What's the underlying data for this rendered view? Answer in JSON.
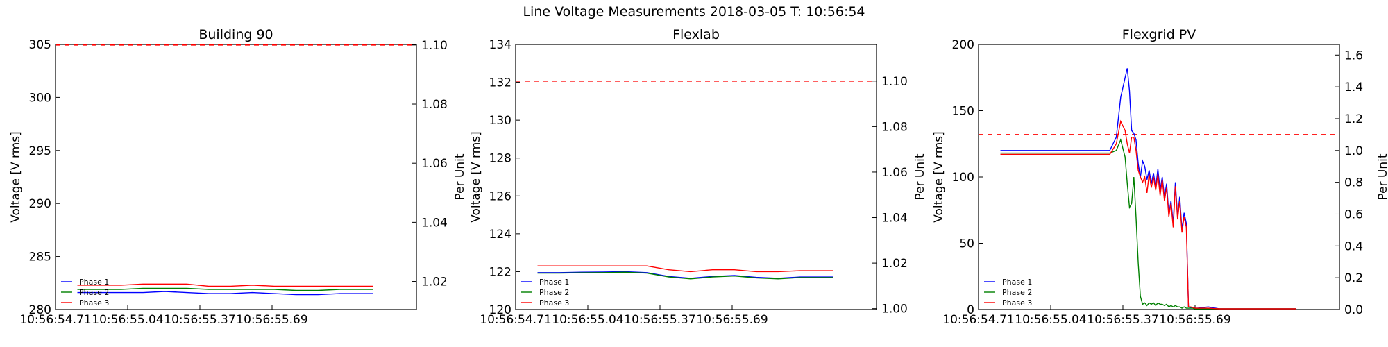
{
  "suptitle": "Line Voltage Measurements 2018-03-05 T: 10:56:54",
  "colors": {
    "phase1": "#0000ff",
    "phase2": "#008000",
    "phase3": "#ff0000",
    "limit": "#ff0000"
  },
  "chart_data": [
    {
      "type": "line",
      "title": "Building 90",
      "ylabel": "Voltage [V rms]",
      "y2label": "Per Unit",
      "ylim": [
        280,
        305
      ],
      "y2lim": [
        1.0105,
        1.1002
      ],
      "yticks": [
        "280",
        "285",
        "290",
        "295",
        "300",
        "305"
      ],
      "y2ticks": [
        "1.02",
        "1.04",
        "1.06",
        "1.08",
        "1.10"
      ],
      "xticks": [
        "10:56:54.71",
        "10:56:55.04",
        "10:56:55.37",
        "10:56:55.69"
      ],
      "xlim": [
        0,
        1.65
      ],
      "limit_line": 1.1,
      "legend_location": "lower left",
      "grid": false,
      "x": [
        0.1,
        0.2,
        0.3,
        0.4,
        0.5,
        0.6,
        0.7,
        0.8,
        0.9,
        1.0,
        1.1,
        1.2,
        1.3,
        1.45
      ],
      "series": [
        {
          "name": "Phase 1",
          "values": [
            281.6,
            281.6,
            281.6,
            281.6,
            281.7,
            281.6,
            281.5,
            281.5,
            281.6,
            281.5,
            281.4,
            281.4,
            281.5,
            281.5
          ]
        },
        {
          "name": "Phase 2",
          "values": [
            281.9,
            281.9,
            281.9,
            282.0,
            282.0,
            282.0,
            281.9,
            281.9,
            281.9,
            281.9,
            281.8,
            281.8,
            281.9,
            281.9
          ]
        },
        {
          "name": "Phase 3",
          "values": [
            282.3,
            282.3,
            282.3,
            282.4,
            282.4,
            282.4,
            282.2,
            282.2,
            282.3,
            282.2,
            282.2,
            282.2,
            282.2,
            282.2
          ]
        }
      ]
    },
    {
      "type": "line",
      "title": "Flexlab",
      "ylabel": "Voltage [V rms]",
      "y2label": "Per Unit",
      "ylim": [
        120,
        134
      ],
      "y2lim": [
        0.9996,
        1.1161
      ],
      "yticks": [
        "120",
        "122",
        "124",
        "126",
        "128",
        "130",
        "132",
        "134"
      ],
      "y2ticks": [
        "1.00",
        "1.02",
        "1.04",
        "1.06",
        "1.08",
        "1.10"
      ],
      "xticks": [
        "10:56:54.71",
        "10:56:55.04",
        "10:56:55.37",
        "10:56:55.69"
      ],
      "xlim": [
        0,
        1.65
      ],
      "limit_line": 1.1,
      "legend_location": "lower left",
      "grid": false,
      "x": [
        0.1,
        0.2,
        0.3,
        0.4,
        0.5,
        0.6,
        0.7,
        0.8,
        0.9,
        1.0,
        1.1,
        1.2,
        1.3,
        1.45
      ],
      "series": [
        {
          "name": "Phase 1",
          "values": [
            121.95,
            121.95,
            121.97,
            121.98,
            122.0,
            121.95,
            121.75,
            121.65,
            121.75,
            121.8,
            121.7,
            121.65,
            121.72,
            121.72
          ]
        },
        {
          "name": "Phase 2",
          "values": [
            121.92,
            121.92,
            121.94,
            121.95,
            121.97,
            121.92,
            121.72,
            121.62,
            121.72,
            121.77,
            121.67,
            121.62,
            121.69,
            121.69
          ]
        },
        {
          "name": "Phase 3",
          "values": [
            122.3,
            122.3,
            122.3,
            122.3,
            122.3,
            122.3,
            122.1,
            122.0,
            122.1,
            122.1,
            122.0,
            122.0,
            122.05,
            122.05
          ]
        }
      ]
    },
    {
      "type": "line",
      "title": "Flexgrid PV",
      "ylabel": "Voltage [V rms]",
      "y2label": "Per Unit",
      "ylim": [
        0,
        200
      ],
      "y2lim": [
        0,
        1.6667
      ],
      "yticks": [
        "0",
        "50",
        "100",
        "150",
        "200"
      ],
      "y2ticks": [
        "0.0",
        "0.2",
        "0.4",
        "0.6",
        "0.8",
        "1.0",
        "1.2",
        "1.4",
        "1.6"
      ],
      "xticks": [
        "10:56:54.71",
        "10:56:55.04",
        "10:56:55.37",
        "10:56:55.69"
      ],
      "xlim": [
        0,
        1.65
      ],
      "limit_line": 1.1,
      "legend_location": "lower left",
      "grid": false,
      "x": [
        0.1,
        0.3,
        0.5,
        0.6,
        0.63,
        0.65,
        0.67,
        0.68,
        0.69,
        0.7,
        0.71,
        0.72,
        0.73,
        0.74,
        0.75,
        0.76,
        0.77,
        0.78,
        0.79,
        0.8,
        0.81,
        0.82,
        0.83,
        0.84,
        0.85,
        0.86,
        0.87,
        0.88,
        0.89,
        0.9,
        0.91,
        0.92,
        0.93,
        0.94,
        0.95,
        0.96,
        0.97,
        0.98,
        0.99,
        1.0,
        1.05,
        1.1,
        1.2,
        1.3,
        1.45
      ],
      "series": [
        {
          "name": "Phase 1",
          "values": [
            120,
            120,
            120,
            120,
            130,
            160,
            175,
            182,
            165,
            135,
            133,
            128,
            110,
            100,
            112,
            108,
            98,
            105,
            95,
            103,
            92,
            106,
            90,
            100,
            85,
            95,
            72,
            82,
            65,
            96,
            70,
            85,
            60,
            73,
            65,
            2,
            1.5,
            1.5,
            1,
            1,
            2,
            0.5,
            0.5,
            0.5,
            0.5
          ]
        },
        {
          "name": "Phase 2",
          "values": [
            118,
            118,
            118,
            118,
            120,
            128,
            115,
            95,
            77,
            80,
            100,
            70,
            35,
            10,
            4,
            5,
            3,
            5,
            4,
            5,
            3,
            5,
            4,
            4,
            3,
            4,
            2,
            3,
            2,
            3,
            2,
            2,
            1,
            2,
            1,
            1,
            1,
            1,
            0.5,
            0.5,
            0.5,
            0.5,
            0.5,
            0.5,
            0.5
          ]
        },
        {
          "name": "Phase 3",
          "values": [
            117,
            117,
            117,
            117,
            125,
            142,
            135,
            125,
            118,
            130,
            130,
            120,
            105,
            100,
            96,
            100,
            88,
            102,
            92,
            100,
            90,
            102,
            86,
            98,
            82,
            92,
            70,
            80,
            62,
            93,
            68,
            82,
            58,
            70,
            62,
            2,
            2,
            1.5,
            1,
            1,
            1,
            0.5,
            0.5,
            0.5,
            0.5
          ]
        }
      ]
    }
  ]
}
